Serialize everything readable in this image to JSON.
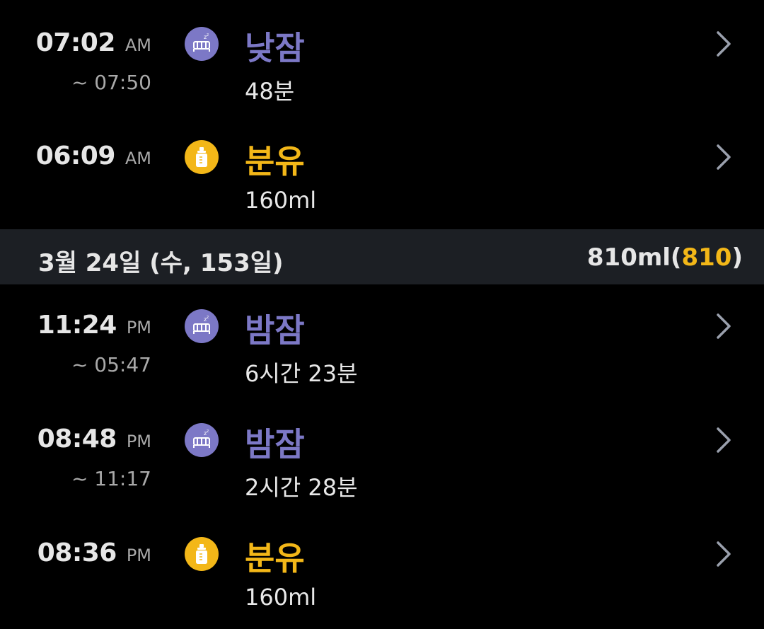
{
  "colors": {
    "sleep": "#7c78c6",
    "formula": "#f3b718",
    "header_bg": "#1c1f24",
    "chevron": "#9aa0ad"
  },
  "icons": {
    "sleep": "crib-icon",
    "formula": "bottle-icon",
    "chevron": "chevron-right-icon"
  },
  "entries_top": [
    {
      "time": "07:02",
      "ampm": "AM",
      "end": "~ 07:50",
      "type": "sleep",
      "title": "낮잠",
      "detail": "48분"
    },
    {
      "time": "06:09",
      "ampm": "AM",
      "end": "",
      "type": "formula",
      "title": "분유",
      "detail": "160ml"
    }
  ],
  "date_header": {
    "label": "3월 24일 (수, 153일)",
    "total_main": "810ml(",
    "total_highlight": "810",
    "total_close": ")"
  },
  "entries_bottom": [
    {
      "time": "11:24",
      "ampm": "PM",
      "end": "~ 05:47",
      "type": "sleep",
      "title": "밤잠",
      "detail": "6시간 23분"
    },
    {
      "time": "08:48",
      "ampm": "PM",
      "end": "~ 11:17",
      "type": "sleep",
      "title": "밤잠",
      "detail": "2시간 28분"
    },
    {
      "time": "08:36",
      "ampm": "PM",
      "end": "",
      "type": "formula",
      "title": "분유",
      "detail": "160ml"
    }
  ]
}
